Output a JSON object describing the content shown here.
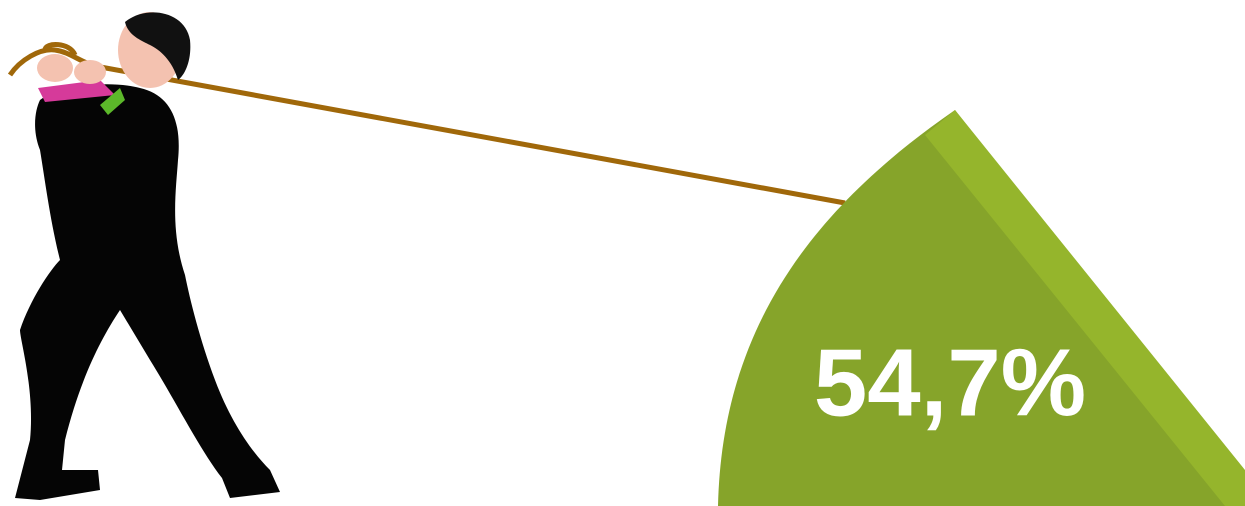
{
  "graphic": {
    "value_label": "54,7%"
  }
}
